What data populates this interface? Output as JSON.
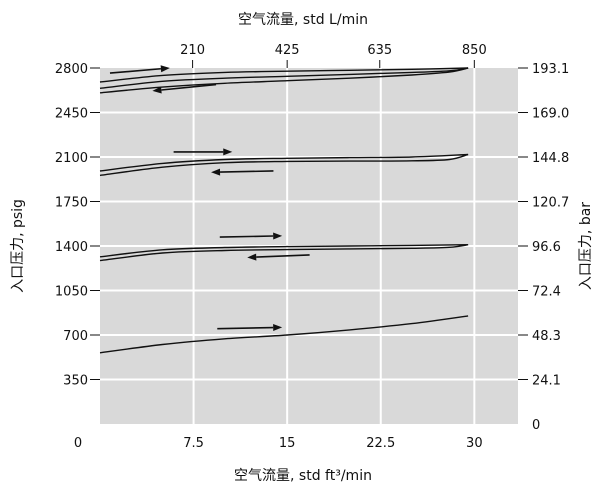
{
  "chart_data": {
    "type": "line",
    "title": "",
    "xlabel_bottom": "空气流量, std ft³/min",
    "xlabel_top": "空气流量, std L/min",
    "ylabel_left": "入口压力, psig",
    "ylabel_right": "入口压力, bar",
    "xlim": [
      0,
      33.5
    ],
    "ylim": [
      0,
      2800
    ],
    "grid": true,
    "plot_background": "#d9d9d9",
    "x_ticks_bottom": [
      {
        "value": 0,
        "label": "0"
      },
      {
        "value": 7.5,
        "label": "7.5"
      },
      {
        "value": 15,
        "label": "15"
      },
      {
        "value": 22.5,
        "label": "22.5"
      },
      {
        "value": 30,
        "label": "30"
      }
    ],
    "x_ticks_top": [
      {
        "value": 7.42,
        "label": "210"
      },
      {
        "value": 15.0,
        "label": "425"
      },
      {
        "value": 22.42,
        "label": "635"
      },
      {
        "value": 30.0,
        "label": "850"
      }
    ],
    "y_ticks_left": [
      {
        "value": 350,
        "label": "350"
      },
      {
        "value": 700,
        "label": "700"
      },
      {
        "value": 1050,
        "label": "1050"
      },
      {
        "value": 1400,
        "label": "1400"
      },
      {
        "value": 1750,
        "label": "1750"
      },
      {
        "value": 2100,
        "label": "2100"
      },
      {
        "value": 2450,
        "label": "2450"
      },
      {
        "value": 2800,
        "label": "2800"
      }
    ],
    "y_ticks_right": [
      {
        "value": 0,
        "label": "0"
      },
      {
        "value": 350,
        "label": "24.1"
      },
      {
        "value": 700,
        "label": "48.3"
      },
      {
        "value": 1050,
        "label": "72.4"
      },
      {
        "value": 1400,
        "label": "96.6"
      },
      {
        "value": 1750,
        "label": "120.7"
      },
      {
        "value": 2100,
        "label": "144.8"
      },
      {
        "value": 2450,
        "label": "169.0"
      },
      {
        "value": 2800,
        "label": "193.1"
      }
    ],
    "series": [
      {
        "x": [
          0,
          5,
          10,
          15,
          20,
          25,
          29.5
        ],
        "y": [
          2690,
          2742,
          2765,
          2775,
          2782,
          2790,
          2800
        ]
      },
      {
        "x": [
          0,
          5,
          10,
          15,
          20,
          25,
          28,
          29.5
        ],
        "y": [
          2640,
          2695,
          2720,
          2735,
          2750,
          2765,
          2778,
          2800
        ]
      },
      {
        "x": [
          0,
          5,
          10,
          15,
          20,
          25,
          28,
          29.5
        ],
        "y": [
          2605,
          2650,
          2680,
          2700,
          2720,
          2745,
          2768,
          2800
        ]
      },
      {
        "x": [
          0,
          5,
          10,
          15,
          20,
          25,
          29.5
        ],
        "y": [
          1990,
          2050,
          2080,
          2090,
          2095,
          2100,
          2120
        ]
      },
      {
        "x": [
          0,
          5,
          10,
          15,
          20,
          25,
          28,
          29.5
        ],
        "y": [
          1955,
          2020,
          2055,
          2065,
          2068,
          2070,
          2080,
          2120
        ]
      },
      {
        "x": [
          0,
          5,
          10,
          15,
          20,
          25,
          29.5
        ],
        "y": [
          1315,
          1370,
          1388,
          1395,
          1400,
          1405,
          1410
        ]
      },
      {
        "x": [
          0,
          5,
          10,
          15,
          20,
          25,
          28,
          29.5
        ],
        "y": [
          1285,
          1345,
          1365,
          1372,
          1377,
          1382,
          1390,
          1410
        ]
      },
      {
        "x": [
          0,
          5,
          10,
          15,
          20,
          25,
          29.5
        ],
        "y": [
          560,
          625,
          670,
          700,
          740,
          790,
          850
        ]
      }
    ],
    "arrows": [
      {
        "from": [
          0.8,
          2760
        ],
        "to": [
          5.6,
          2800
        ]
      },
      {
        "from": [
          9.3,
          2670
        ],
        "to": [
          4.2,
          2620
        ]
      },
      {
        "from": [
          5.9,
          2140
        ],
        "to": [
          10.6,
          2140
        ]
      },
      {
        "from": [
          13.9,
          1990
        ],
        "to": [
          8.9,
          1980
        ]
      },
      {
        "from": [
          9.6,
          1470
        ],
        "to": [
          14.6,
          1480
        ]
      },
      {
        "from": [
          16.8,
          1330
        ],
        "to": [
          11.8,
          1310
        ]
      },
      {
        "from": [
          9.4,
          750
        ],
        "to": [
          14.6,
          760
        ]
      }
    ]
  }
}
